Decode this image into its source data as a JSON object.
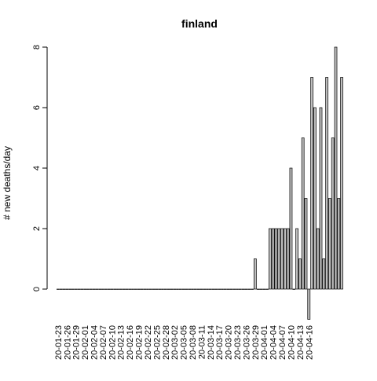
{
  "chart_data": {
    "type": "bar",
    "title": "finland",
    "xlabel": "",
    "ylabel": "# new deaths/day",
    "ylim": [
      -1,
      8
    ],
    "y_ticks": [
      0,
      2,
      4,
      6,
      8
    ],
    "start_date": "2020-01-23",
    "x_tick_labels": [
      "20-01-23",
      "20-01-26",
      "20-01-29",
      "20-02-01",
      "20-02-04",
      "20-02-07",
      "20-02-10",
      "20-02-13",
      "20-02-16",
      "20-02-19",
      "20-02-22",
      "20-02-25",
      "20-02-28",
      "20-03-02",
      "20-03-05",
      "20-03-08",
      "20-03-11",
      "20-03-14",
      "20-03-17",
      "20-03-20",
      "20-03-23",
      "20-03-26",
      "20-03-29",
      "20-04-01",
      "20-04-04",
      "20-04-07",
      "20-04-10",
      "20-04-13",
      "20-04-16"
    ],
    "values": [
      0,
      0,
      0,
      0,
      0,
      0,
      0,
      0,
      0,
      0,
      0,
      0,
      0,
      0,
      0,
      0,
      0,
      0,
      0,
      0,
      0,
      0,
      0,
      0,
      0,
      0,
      0,
      0,
      0,
      0,
      0,
      0,
      0,
      0,
      0,
      0,
      0,
      0,
      0,
      0,
      0,
      0,
      0,
      0,
      0,
      0,
      0,
      0,
      0,
      0,
      0,
      0,
      0,
      0,
      0,
      0,
      0,
      0,
      0,
      0,
      0,
      0,
      0,
      0,
      0,
      0,
      1,
      0,
      0,
      0,
      0,
      2,
      2,
      2,
      2,
      2,
      2,
      2,
      4,
      0,
      2,
      1,
      5,
      3,
      -1,
      7,
      6,
      2,
      6,
      1,
      7,
      3,
      5,
      8,
      3,
      7
    ],
    "bar_fill": "#bebebe",
    "bar_stroke": "#000000",
    "grid": false,
    "legend": "none"
  }
}
